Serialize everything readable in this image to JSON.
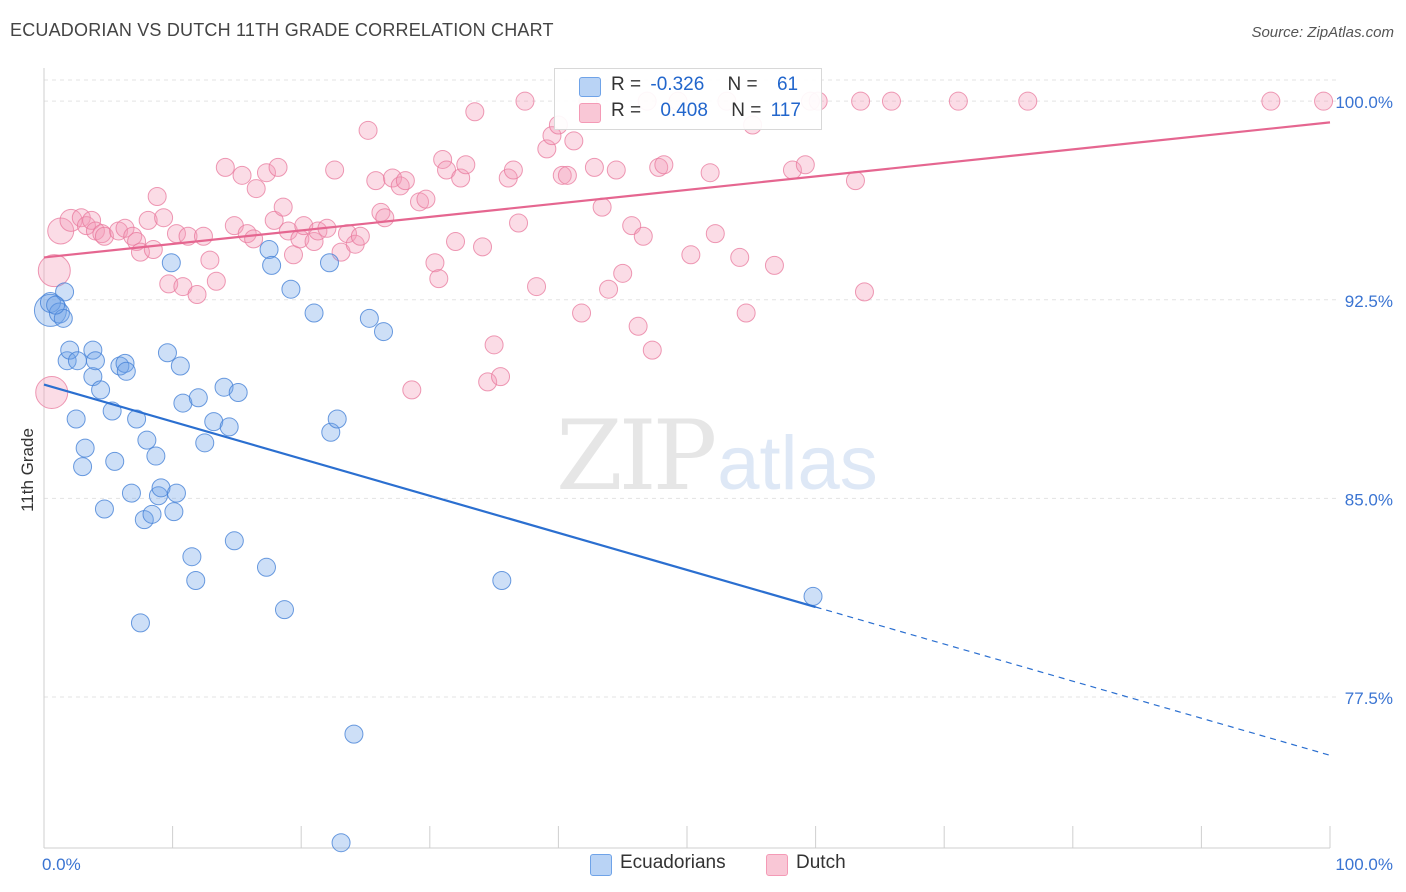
{
  "title": "ECUADORIAN VS DUTCH 11TH GRADE CORRELATION CHART",
  "source": "Source: ZipAtlas.com",
  "watermark": {
    "zip": "ZIP",
    "atlas": "atlas"
  },
  "legend_top": [
    {
      "r_label": "R =",
      "r_value": "-0.326",
      "n_label": "N =",
      "n_value": "61"
    },
    {
      "r_label": "R =",
      "r_value": "0.408",
      "n_label": "N =",
      "n_value": "117"
    }
  ],
  "legend_bottom": [
    "Ecuadorians",
    "Dutch"
  ],
  "chart_data": {
    "type": "scatter",
    "title": "ECUADORIAN VS DUTCH 11TH GRADE CORRELATION CHART",
    "xlabel": "",
    "ylabel": "11th Grade",
    "xlim": [
      0,
      100
    ],
    "ylim": [
      71.8,
      100.8
    ],
    "x_tick_labels": [
      "0.0%",
      "100.0%"
    ],
    "y_ticks": [
      77.5,
      85.0,
      92.5,
      100.0
    ],
    "y_tick_labels": [
      "77.5%",
      "85.0%",
      "92.5%",
      "100.0%"
    ],
    "grid": true,
    "legend_position": "bottom",
    "colors": {
      "Ecuadorians": "#6fa3e8",
      "Dutch": "#f49ab6",
      "Ecuadorians_line": "#2b6fd0",
      "Dutch_line": "#e56690"
    },
    "series": [
      {
        "name": "Ecuadorians",
        "trend": {
          "x0": 0,
          "y0": 89.3,
          "x1": 60,
          "y1": 80.9,
          "dashed_to_x": 100,
          "dashed_to_y": 75.3
        },
        "points": [
          [
            0.5,
            92.1,
            16
          ],
          [
            0.5,
            92.4,
            10
          ],
          [
            1.2,
            92.0,
            10
          ],
          [
            1.5,
            91.8,
            9
          ],
          [
            1.8,
            90.2,
            9
          ],
          [
            2.0,
            90.6,
            9
          ],
          [
            2.5,
            88.0,
            9
          ],
          [
            2.6,
            90.2,
            9
          ],
          [
            3.0,
            86.2,
            9
          ],
          [
            3.2,
            86.9,
            9
          ],
          [
            3.8,
            90.6,
            9
          ],
          [
            3.8,
            89.6,
            9
          ],
          [
            4.0,
            90.2,
            9
          ],
          [
            4.4,
            89.1,
            9
          ],
          [
            4.7,
            84.6,
            9
          ],
          [
            5.3,
            88.3,
            9
          ],
          [
            5.5,
            86.4,
            9
          ],
          [
            5.9,
            90.0,
            9
          ],
          [
            6.3,
            90.1,
            9
          ],
          [
            6.4,
            89.8,
            9
          ],
          [
            6.8,
            85.2,
            9
          ],
          [
            7.2,
            88.0,
            9
          ],
          [
            7.5,
            80.3,
            9
          ],
          [
            7.8,
            84.2,
            9
          ],
          [
            8.0,
            87.2,
            9
          ],
          [
            8.4,
            84.4,
            9
          ],
          [
            8.7,
            86.6,
            9
          ],
          [
            8.9,
            85.1,
            9
          ],
          [
            9.1,
            85.4,
            9
          ],
          [
            9.6,
            90.5,
            9
          ],
          [
            9.9,
            93.9,
            9
          ],
          [
            10.1,
            84.5,
            9
          ],
          [
            10.3,
            85.2,
            9
          ],
          [
            10.6,
            90.0,
            9
          ],
          [
            10.8,
            88.6,
            9
          ],
          [
            11.5,
            82.8,
            9
          ],
          [
            11.8,
            81.9,
            9
          ],
          [
            12.0,
            88.8,
            9
          ],
          [
            12.5,
            87.1,
            9
          ],
          [
            13.2,
            87.9,
            9
          ],
          [
            14.0,
            89.2,
            9
          ],
          [
            14.4,
            87.7,
            9
          ],
          [
            14.8,
            83.4,
            9
          ],
          [
            15.1,
            89.0,
            9
          ],
          [
            17.5,
            94.4,
            9
          ],
          [
            17.3,
            82.4,
            9
          ],
          [
            17.7,
            93.8,
            9
          ],
          [
            18.7,
            80.8,
            9
          ],
          [
            19.2,
            92.9,
            9
          ],
          [
            21.0,
            92.0,
            9
          ],
          [
            22.3,
            87.5,
            9
          ],
          [
            22.8,
            88.0,
            9
          ],
          [
            22.2,
            93.9,
            9
          ],
          [
            23.1,
            72.0,
            9
          ],
          [
            24.1,
            76.1,
            9
          ],
          [
            25.3,
            91.8,
            9
          ],
          [
            26.4,
            91.3,
            9
          ],
          [
            35.6,
            81.9,
            9
          ],
          [
            59.8,
            81.3,
            9
          ],
          [
            1.6,
            92.8,
            9
          ],
          [
            0.9,
            92.3,
            9
          ]
        ]
      },
      {
        "name": "Dutch",
        "trend": {
          "x0": 0,
          "y0": 94.1,
          "x1": 100,
          "y1": 99.2
        },
        "points": [
          [
            0.8,
            93.6,
            16
          ],
          [
            0.6,
            89.0,
            16
          ],
          [
            1.3,
            95.1,
            13
          ],
          [
            2.1,
            95.5,
            11
          ],
          [
            2.9,
            95.6,
            9
          ],
          [
            3.3,
            95.3,
            9
          ],
          [
            3.7,
            95.5,
            9
          ],
          [
            4.0,
            95.1,
            9
          ],
          [
            4.5,
            95.0,
            9
          ],
          [
            4.7,
            94.9,
            9
          ],
          [
            5.8,
            95.1,
            9
          ],
          [
            6.3,
            95.2,
            9
          ],
          [
            6.9,
            94.9,
            9
          ],
          [
            7.2,
            94.7,
            9
          ],
          [
            7.5,
            94.3,
            9
          ],
          [
            8.1,
            95.5,
            9
          ],
          [
            8.5,
            94.4,
            9
          ],
          [
            8.8,
            96.4,
            9
          ],
          [
            9.3,
            95.6,
            9
          ],
          [
            9.7,
            93.1,
            9
          ],
          [
            10.3,
            95.0,
            9
          ],
          [
            10.8,
            93.0,
            9
          ],
          [
            11.2,
            94.9,
            9
          ],
          [
            11.9,
            92.7,
            9
          ],
          [
            12.4,
            94.9,
            9
          ],
          [
            12.9,
            94.0,
            9
          ],
          [
            13.4,
            93.2,
            9
          ],
          [
            14.1,
            97.5,
            9
          ],
          [
            14.8,
            95.3,
            9
          ],
          [
            15.4,
            97.2,
            9
          ],
          [
            15.8,
            95.0,
            9
          ],
          [
            16.3,
            94.8,
            9
          ],
          [
            16.5,
            96.7,
            9
          ],
          [
            17.3,
            97.3,
            9
          ],
          [
            17.9,
            95.5,
            9
          ],
          [
            18.2,
            97.5,
            9
          ],
          [
            18.6,
            96.0,
            9
          ],
          [
            19.0,
            95.1,
            9
          ],
          [
            19.4,
            94.2,
            9
          ],
          [
            19.9,
            94.8,
            9
          ],
          [
            20.2,
            95.3,
            9
          ],
          [
            21.0,
            94.7,
            9
          ],
          [
            21.3,
            95.1,
            9
          ],
          [
            22.0,
            95.2,
            9
          ],
          [
            22.6,
            97.4,
            9
          ],
          [
            23.1,
            94.3,
            9
          ],
          [
            23.6,
            95.0,
            9
          ],
          [
            24.2,
            94.6,
            9
          ],
          [
            24.6,
            94.9,
            9
          ],
          [
            25.2,
            98.9,
            9
          ],
          [
            25.8,
            97.0,
            9
          ],
          [
            26.2,
            95.8,
            9
          ],
          [
            26.5,
            95.6,
            9
          ],
          [
            27.1,
            97.1,
            9
          ],
          [
            27.7,
            96.8,
            9
          ],
          [
            28.1,
            97.0,
            9
          ],
          [
            28.6,
            89.1,
            9
          ],
          [
            29.2,
            96.2,
            9
          ],
          [
            29.7,
            96.3,
            9
          ],
          [
            30.4,
            93.9,
            9
          ],
          [
            30.7,
            93.3,
            9
          ],
          [
            31.0,
            97.8,
            9
          ],
          [
            31.3,
            97.4,
            9
          ],
          [
            32.0,
            94.7,
            9
          ],
          [
            32.4,
            97.1,
            9
          ],
          [
            32.8,
            97.6,
            9
          ],
          [
            33.5,
            99.6,
            9
          ],
          [
            34.1,
            94.5,
            9
          ],
          [
            34.5,
            89.4,
            9
          ],
          [
            35.0,
            90.8,
            9
          ],
          [
            35.5,
            89.6,
            9
          ],
          [
            36.1,
            97.1,
            9
          ],
          [
            36.5,
            97.4,
            9
          ],
          [
            36.9,
            95.4,
            9
          ],
          [
            37.4,
            100.0,
            9
          ],
          [
            38.3,
            93.0,
            9
          ],
          [
            39.1,
            98.2,
            9
          ],
          [
            39.5,
            98.7,
            9
          ],
          [
            40.0,
            99.1,
            9
          ],
          [
            40.3,
            97.2,
            9
          ],
          [
            40.7,
            97.2,
            9
          ],
          [
            41.2,
            98.5,
            9
          ],
          [
            41.8,
            92.0,
            9
          ],
          [
            42.3,
            100.0,
            9
          ],
          [
            42.8,
            97.5,
            9
          ],
          [
            43.4,
            96.0,
            9
          ],
          [
            43.9,
            92.9,
            9
          ],
          [
            44.5,
            97.4,
            9
          ],
          [
            45.0,
            93.5,
            9
          ],
          [
            45.7,
            95.3,
            9
          ],
          [
            46.2,
            91.5,
            9
          ],
          [
            46.6,
            94.9,
            9
          ],
          [
            47.3,
            90.6,
            9
          ],
          [
            47.8,
            97.5,
            9
          ],
          [
            48.2,
            97.6,
            9
          ],
          [
            49.3,
            100.0,
            9
          ],
          [
            50.3,
            94.2,
            9
          ],
          [
            51.8,
            97.3,
            9
          ],
          [
            52.2,
            95.0,
            9
          ],
          [
            53.1,
            100.0,
            9
          ],
          [
            54.1,
            94.1,
            9
          ],
          [
            54.6,
            92.0,
            9
          ],
          [
            55.1,
            99.1,
            9
          ],
          [
            56.8,
            93.8,
            9
          ],
          [
            58.2,
            97.4,
            9
          ],
          [
            59.6,
            100.0,
            9
          ],
          [
            60.2,
            100.0,
            9
          ],
          [
            63.5,
            100.0,
            9
          ],
          [
            63.1,
            97.0,
            9
          ],
          [
            63.8,
            92.8,
            9
          ],
          [
            65.9,
            100.0,
            9
          ],
          [
            71.1,
            100.0,
            9
          ],
          [
            76.5,
            100.0,
            9
          ],
          [
            95.4,
            100.0,
            9
          ],
          [
            99.5,
            100.0,
            9
          ],
          [
            59.2,
            97.6,
            9
          ],
          [
            46.9,
            100.0,
            9
          ]
        ]
      }
    ]
  }
}
